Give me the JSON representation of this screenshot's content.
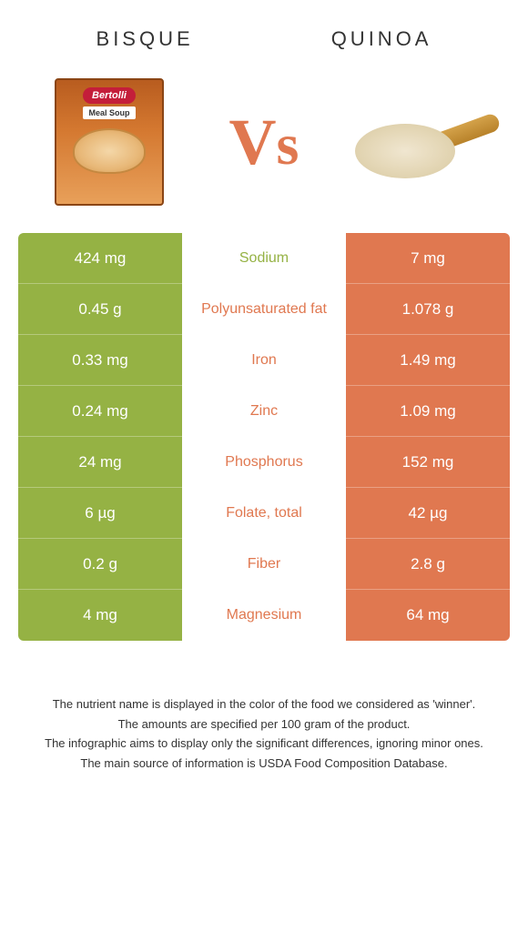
{
  "header": {
    "left": "Bisque",
    "right": "Quinoa"
  },
  "vs": {
    "v": "V",
    "s": "S"
  },
  "bisque_illustration": {
    "logo": "Bertolli",
    "label": "Meal Soup"
  },
  "colors": {
    "left_bg": "#95b244",
    "right_bg": "#e07850",
    "left_text": "#95b244",
    "right_text": "#e07850",
    "vs_color": "#e07850"
  },
  "rows": [
    {
      "left": "424 mg",
      "label": "Sodium",
      "right": "7 mg",
      "winner": "left"
    },
    {
      "left": "0.45 g",
      "label": "Polyunsaturated fat",
      "right": "1.078 g",
      "winner": "right"
    },
    {
      "left": "0.33 mg",
      "label": "Iron",
      "right": "1.49 mg",
      "winner": "right"
    },
    {
      "left": "0.24 mg",
      "label": "Zinc",
      "right": "1.09 mg",
      "winner": "right"
    },
    {
      "left": "24 mg",
      "label": "Phosphorus",
      "right": "152 mg",
      "winner": "right"
    },
    {
      "left": "6 µg",
      "label": "Folate, total",
      "right": "42 µg",
      "winner": "right"
    },
    {
      "left": "0.2 g",
      "label": "Fiber",
      "right": "2.8 g",
      "winner": "right"
    },
    {
      "left": "4 mg",
      "label": "Magnesium",
      "right": "64 mg",
      "winner": "right"
    }
  ],
  "footer": [
    "The nutrient name is displayed in the color of the food we considered as 'winner'.",
    "The amounts are specified per 100 gram of the product.",
    "The infographic aims to display only the significant differences, ignoring minor ones.",
    "The main source of information is USDA Food Composition Database."
  ]
}
